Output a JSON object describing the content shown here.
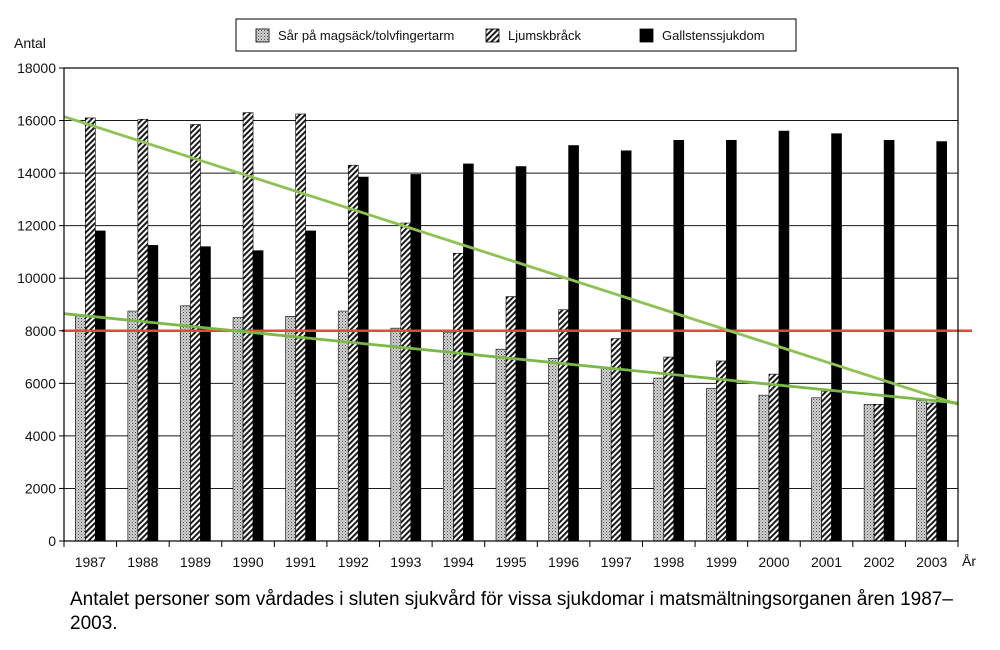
{
  "caption": "Antalet personer som vårdades i sluten sjukvård för vissa sjukdomar i matsmältningsorganen åren 1987–2003.",
  "chart_data": {
    "type": "bar",
    "title": "",
    "ylabel": "Antal",
    "xlabel": "År",
    "ylim": [
      0,
      18000
    ],
    "yticks": [
      "0",
      "2000",
      "4000",
      "6000",
      "8000",
      "10000",
      "12000",
      "14000",
      "16000",
      "18000"
    ],
    "grid": "horizontal",
    "legend_position": "top",
    "categories": [
      "1987",
      "1988",
      "1989",
      "1990",
      "1991",
      "1992",
      "1993",
      "1994",
      "1995",
      "1996",
      "1997",
      "1998",
      "1999",
      "2000",
      "2001",
      "2002",
      "2003"
    ],
    "series": [
      {
        "name": "Sår på magsäck/tolvfingertarm",
        "pattern": "dotted",
        "values": [
          8600,
          8750,
          8950,
          8500,
          8550,
          8750,
          8100,
          7950,
          7300,
          6950,
          6600,
          6200,
          5800,
          5550,
          5450,
          5200,
          5350
        ]
      },
      {
        "name": "Ljumskbråck",
        "pattern": "hatched",
        "values": [
          16100,
          16050,
          15850,
          16300,
          16250,
          14300,
          12100,
          10950,
          9300,
          8800,
          7700,
          7000,
          6850,
          6350,
          5700,
          5200,
          5250
        ]
      },
      {
        "name": "Gallstenssjukdom",
        "pattern": "solid",
        "values": [
          11800,
          11250,
          11200,
          11050,
          11800,
          13850,
          13950,
          14350,
          14250,
          15050,
          14850,
          15250,
          15250,
          15600,
          15500,
          15250,
          15200
        ]
      }
    ],
    "overlays": [
      {
        "kind": "horizontal-line",
        "color": "#e8463a",
        "y": 8000
      },
      {
        "kind": "trend-line",
        "color": "#8fc255",
        "y_start": 16150,
        "y_end": 5200
      },
      {
        "kind": "trend-line",
        "color": "#7ab848",
        "y_start": 8650,
        "y_end": 5250
      }
    ]
  }
}
